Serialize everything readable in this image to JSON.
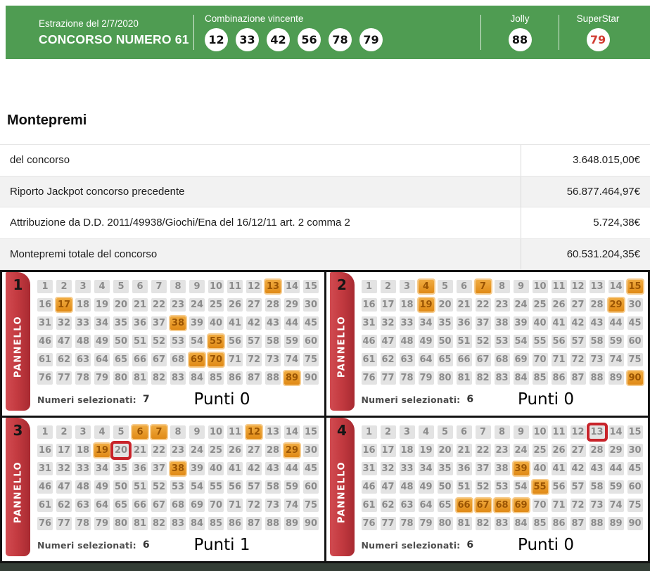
{
  "header": {
    "draw_date_label": "Estrazione del 2/7/2020",
    "contest_title": "CONCORSO NUMERO 61",
    "winning_combination_label": "Combinazione vincente",
    "winning_numbers": [
      12,
      33,
      42,
      56,
      78,
      79
    ],
    "jolly_label": "Jolly",
    "jolly_number": "88",
    "superstar_label": "SuperStar",
    "superstar_number": "79"
  },
  "montepremi": {
    "title": "Montepremi",
    "rows": [
      {
        "label": "del concorso",
        "value": "3.648.015,00€"
      },
      {
        "label": "Riporto Jackpot concorso precedente",
        "value": "56.877.464,97€"
      },
      {
        "label": "Attribuzione da D.D. 2011/49938/Giochi/Ena del 16/12/11 art. 2 comma 2",
        "value": "5.724,38€"
      },
      {
        "label": "Montepremi totale del concorso",
        "value": "60.531.204,35€"
      }
    ]
  },
  "panels": {
    "side_label": "PANNELLO",
    "grid_numbers_from": 1,
    "grid_numbers_to": 90,
    "selected_label": "Numeri selezionati:",
    "punti_label": "Punti",
    "items": [
      {
        "number": "1",
        "selected": [
          13,
          17,
          38,
          55,
          69,
          70,
          89
        ],
        "outlined": [],
        "selected_count": "7",
        "punti": "0"
      },
      {
        "number": "2",
        "selected": [
          4,
          7,
          15,
          19,
          29,
          90
        ],
        "outlined": [],
        "selected_count": "6",
        "punti": "0"
      },
      {
        "number": "3",
        "selected": [
          6,
          7,
          12,
          19,
          29,
          38
        ],
        "outlined": [
          20
        ],
        "selected_count": "6",
        "punti": "1"
      },
      {
        "number": "4",
        "selected": [
          39,
          55,
          66,
          67,
          68,
          69
        ],
        "outlined": [
          13
        ],
        "selected_count": "6",
        "punti": "0"
      }
    ]
  },
  "colors": {
    "header_green": "#4f9c52",
    "ribbon_red": "#c43b41",
    "selected_orange": "#e08a16",
    "selected_text": "#9a5403",
    "outline_red": "#c8232a",
    "superstar_red": "#d23b31",
    "cell_gray": "#e3e3e3",
    "cell_text": "#8b8b8b"
  }
}
